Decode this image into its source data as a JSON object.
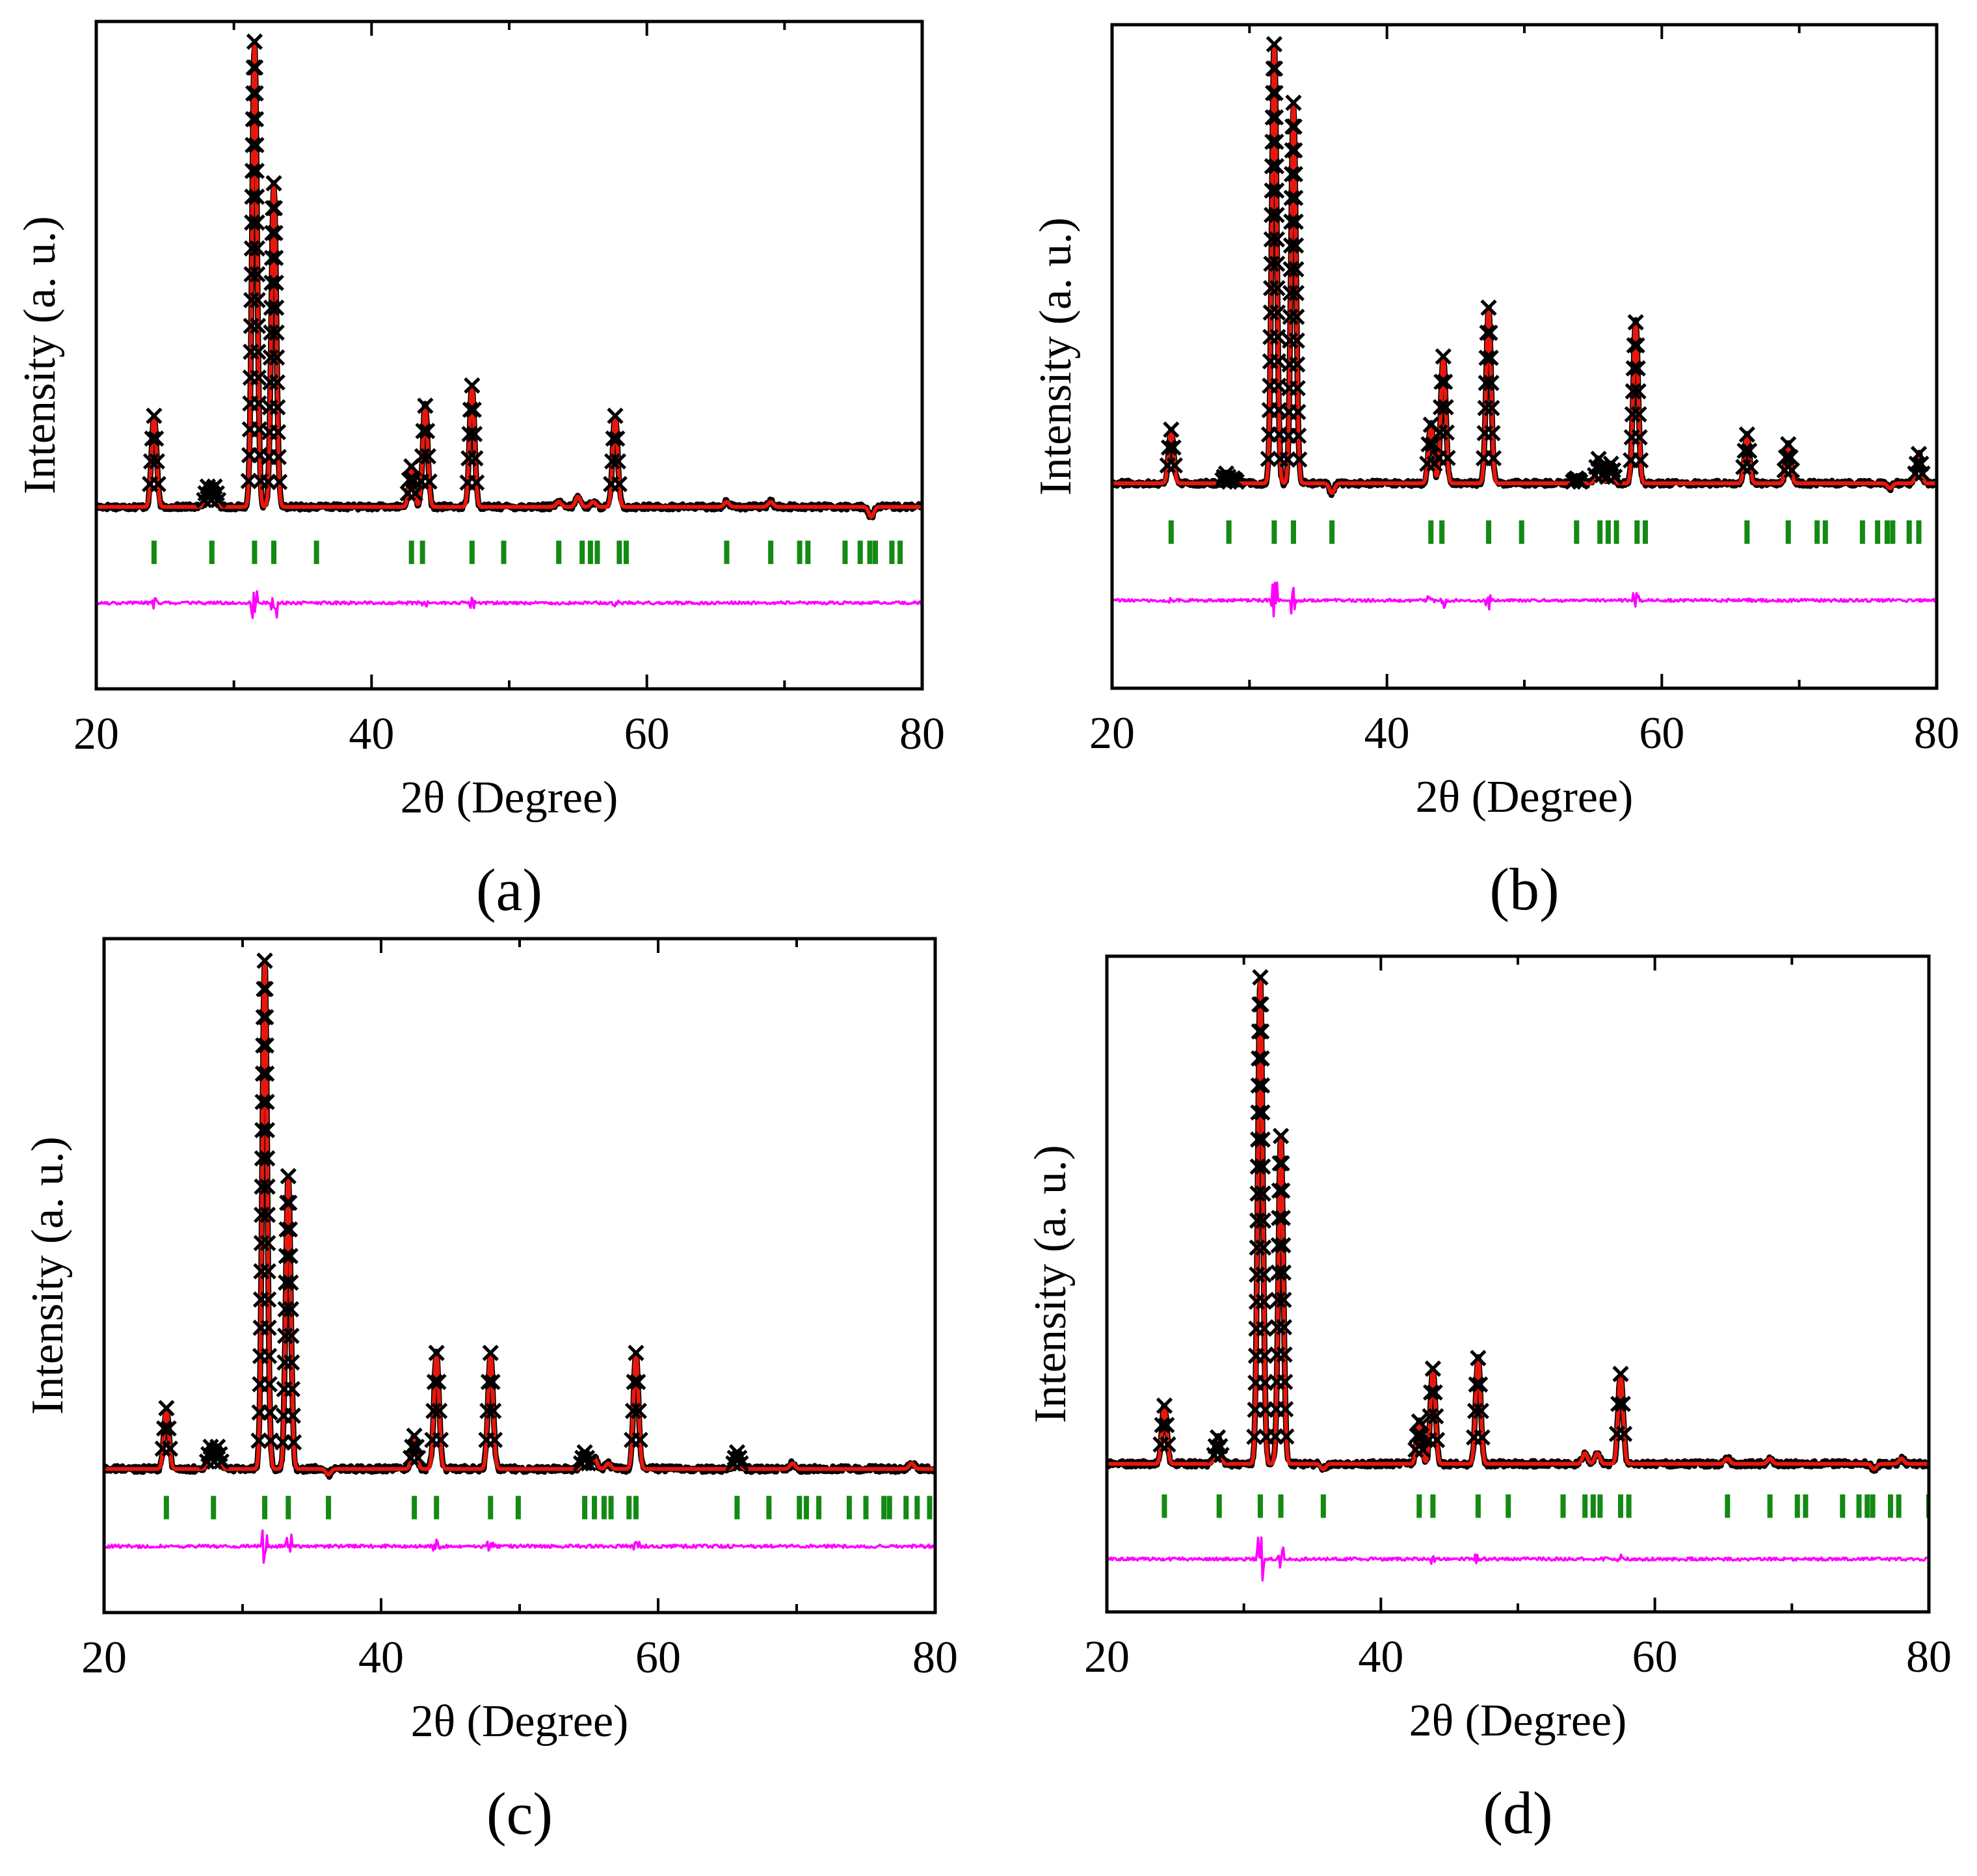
{
  "figure": {
    "panel_labels": [
      "(a)",
      "(b)",
      "(c)",
      "(d)"
    ]
  },
  "colors": {
    "observed": "#000000",
    "calculated": "#e8170c",
    "difference": "#ff00ff",
    "bragg": "#138a13"
  },
  "chart_data": [
    {
      "type": "line",
      "label": "(a)",
      "xlabel": "2θ (Degree)",
      "ylabel": "Intensity (a. u.)",
      "xlim": [
        20,
        80
      ],
      "ylim": [
        -32,
        100
      ],
      "xticks": [
        20,
        40,
        60,
        80
      ],
      "baseline": 4,
      "diff_offset": -15,
      "bragg_level": -5,
      "series": [
        {
          "name": "Observed",
          "marker": "x",
          "color": "#000000"
        },
        {
          "name": "Calculated",
          "color": "#e8170c"
        },
        {
          "name": "Difference",
          "color": "#ff00ff"
        },
        {
          "name": "Bragg positions",
          "color": "#138a13"
        }
      ],
      "peaks": [
        {
          "x": 24.2,
          "y": 22
        },
        {
          "x": 28.1,
          "y": 8
        },
        {
          "x": 28.6,
          "y": 8
        },
        {
          "x": 31.5,
          "y": 96
        },
        {
          "x": 32.9,
          "y": 68
        },
        {
          "x": 36.0,
          "y": 4
        },
        {
          "x": 42.9,
          "y": 12
        },
        {
          "x": 43.9,
          "y": 24
        },
        {
          "x": 47.3,
          "y": 28
        },
        {
          "x": 53.6,
          "y": 5
        },
        {
          "x": 55.0,
          "y": 6
        },
        {
          "x": 56.1,
          "y": 5
        },
        {
          "x": 57.7,
          "y": 22
        },
        {
          "x": 65.8,
          "y": 5
        },
        {
          "x": 69.0,
          "y": 5
        },
        {
          "x": 76.3,
          "y": 2
        },
        {
          "x": 78.5,
          "y": 4
        }
      ],
      "bragg_positions": [
        24.2,
        28.4,
        31.5,
        32.9,
        36.0,
        42.9,
        43.7,
        47.3,
        49.6,
        53.6,
        55.3,
        55.9,
        56.4,
        58.0,
        58.5,
        65.8,
        69.0,
        71.1,
        71.7,
        74.4,
        75.5,
        76.2,
        76.6,
        77.8,
        78.4
      ]
    },
    {
      "type": "line",
      "label": "(b)",
      "xlabel": "2θ (Degree)",
      "ylabel": "Intensity (a. u.)",
      "xlim": [
        20,
        80
      ],
      "ylim": [
        -36,
        100
      ],
      "xticks": [
        20,
        40,
        60,
        80
      ],
      "baseline": 6,
      "diff_offset": -18,
      "bragg_level": -4,
      "series": [
        {
          "name": "Observed",
          "marker": "x",
          "color": "#000000"
        },
        {
          "name": "Calculated",
          "color": "#e8170c"
        },
        {
          "name": "Difference",
          "color": "#ff00ff"
        },
        {
          "name": "Bragg positions",
          "color": "#138a13"
        }
      ],
      "peaks": [
        {
          "x": 24.3,
          "y": 17
        },
        {
          "x": 28.3,
          "y": 8
        },
        {
          "x": 28.8,
          "y": 7
        },
        {
          "x": 31.8,
          "y": 96
        },
        {
          "x": 33.2,
          "y": 84
        },
        {
          "x": 36.0,
          "y": 4
        },
        {
          "x": 43.2,
          "y": 18
        },
        {
          "x": 44.1,
          "y": 32
        },
        {
          "x": 47.4,
          "y": 42
        },
        {
          "x": 53.8,
          "y": 7
        },
        {
          "x": 55.4,
          "y": 11
        },
        {
          "x": 56.3,
          "y": 10
        },
        {
          "x": 58.1,
          "y": 39
        },
        {
          "x": 66.2,
          "y": 16
        },
        {
          "x": 69.2,
          "y": 14
        },
        {
          "x": 76.6,
          "y": 5
        },
        {
          "x": 78.7,
          "y": 12
        }
      ],
      "bragg_positions": [
        24.3,
        28.5,
        31.8,
        33.2,
        36.0,
        43.2,
        44.0,
        47.4,
        49.8,
        53.8,
        55.5,
        56.1,
        56.7,
        58.2,
        58.8,
        66.2,
        69.2,
        71.3,
        71.9,
        74.6,
        75.7,
        76.4,
        76.8,
        78.0,
        78.7
      ]
    },
    {
      "type": "line",
      "label": "(c)",
      "xlabel": "2θ (Degree)",
      "ylabel": "Intensity (a. u.)",
      "xlim": [
        20,
        80
      ],
      "ylim": [
        -22,
        100
      ],
      "xticks": [
        20,
        40,
        60,
        80
      ],
      "baseline": 4,
      "diff_offset": -10,
      "bragg_level": -3,
      "series": [
        {
          "name": "Observed",
          "marker": "x",
          "color": "#000000"
        },
        {
          "name": "Calculated",
          "color": "#e8170c"
        },
        {
          "name": "Difference",
          "color": "#ff00ff"
        },
        {
          "name": "Bragg positions",
          "color": "#138a13"
        }
      ],
      "peaks": [
        {
          "x": 24.5,
          "y": 15
        },
        {
          "x": 27.7,
          "y": 8
        },
        {
          "x": 28.2,
          "y": 8
        },
        {
          "x": 31.6,
          "y": 96
        },
        {
          "x": 33.3,
          "y": 57
        },
        {
          "x": 36.2,
          "y": 3
        },
        {
          "x": 42.4,
          "y": 10
        },
        {
          "x": 44.0,
          "y": 25
        },
        {
          "x": 47.9,
          "y": 25
        },
        {
          "x": 54.7,
          "y": 7
        },
        {
          "x": 55.4,
          "y": 6
        },
        {
          "x": 56.4,
          "y": 5
        },
        {
          "x": 58.4,
          "y": 25
        },
        {
          "x": 65.7,
          "y": 7
        },
        {
          "x": 69.7,
          "y": 5
        },
        {
          "x": 78.3,
          "y": 5
        },
        {
          "x": 79.6,
          "y": 4
        }
      ],
      "bragg_positions": [
        24.5,
        27.9,
        31.6,
        33.3,
        36.2,
        42.4,
        44.0,
        47.9,
        49.9,
        54.7,
        55.4,
        56.1,
        56.6,
        57.9,
        58.4,
        65.7,
        68.0,
        70.2,
        70.7,
        71.6,
        73.8,
        75.0,
        76.3,
        76.7,
        77.9,
        78.7,
        79.6
      ]
    },
    {
      "type": "line",
      "label": "(d)",
      "xlabel": "2θ (Degree)",
      "ylabel": "Intensity (a. u.)",
      "xlim": [
        20,
        80
      ],
      "ylim": [
        -24,
        100
      ],
      "xticks": [
        20,
        40,
        60,
        80
      ],
      "baseline": 4,
      "diff_offset": -14,
      "bragg_level": -4,
      "series": [
        {
          "name": "Observed",
          "marker": "x",
          "color": "#000000"
        },
        {
          "name": "Calculated",
          "color": "#e8170c"
        },
        {
          "name": "Difference",
          "color": "#ff00ff"
        },
        {
          "name": "Bragg positions",
          "color": "#138a13"
        }
      ],
      "peaks": [
        {
          "x": 24.2,
          "y": 15
        },
        {
          "x": 28.1,
          "y": 9
        },
        {
          "x": 31.2,
          "y": 96
        },
        {
          "x": 32.7,
          "y": 66
        },
        {
          "x": 35.8,
          "y": 3
        },
        {
          "x": 42.8,
          "y": 12
        },
        {
          "x": 43.8,
          "y": 22
        },
        {
          "x": 47.1,
          "y": 24
        },
        {
          "x": 54.9,
          "y": 6
        },
        {
          "x": 55.8,
          "y": 6
        },
        {
          "x": 57.5,
          "y": 21
        },
        {
          "x": 65.3,
          "y": 5
        },
        {
          "x": 68.4,
          "y": 5
        },
        {
          "x": 76.0,
          "y": 3
        },
        {
          "x": 78.0,
          "y": 5
        }
      ],
      "bragg_positions": [
        24.2,
        28.2,
        31.2,
        32.7,
        35.8,
        42.8,
        43.8,
        47.1,
        49.3,
        53.3,
        54.9,
        55.5,
        56.0,
        57.5,
        58.1,
        65.3,
        68.4,
        70.4,
        71.0,
        73.7,
        74.9,
        75.5,
        75.9,
        77.2,
        77.8,
        80.0
      ]
    }
  ]
}
